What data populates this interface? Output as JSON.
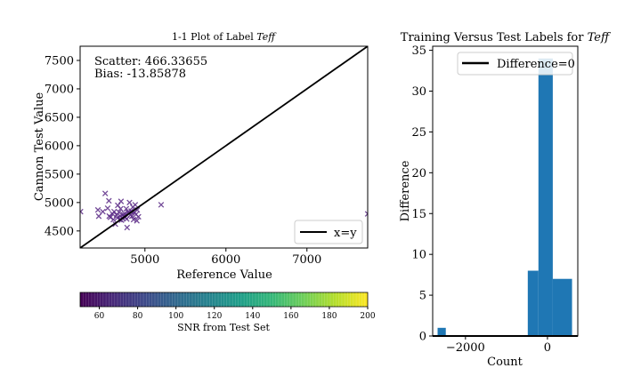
{
  "chart_data": [
    {
      "type": "scatter",
      "title": "1-1 Plot of Label",
      "title_var": "Teff",
      "xlabel": "Reference Value",
      "ylabel": "Cannon Test Value",
      "xlim": [
        4200,
        7750
      ],
      "ylim": [
        4200,
        7750
      ],
      "xticks": [
        5000,
        6000,
        7000
      ],
      "yticks": [
        4500,
        5000,
        5500,
        6000,
        6500,
        7000,
        7500
      ],
      "annotations": [
        "Scatter: 466.33655",
        "Bias: -13.85878"
      ],
      "legend": {
        "label": "x=y",
        "placement": "lower-right"
      },
      "marker_color": "#5b2a86",
      "points": [
        [
          4205,
          4840
        ],
        [
          4420,
          4870
        ],
        [
          4430,
          4760
        ],
        [
          4480,
          4840
        ],
        [
          4510,
          5160
        ],
        [
          4540,
          4900
        ],
        [
          4555,
          5030
        ],
        [
          4560,
          4760
        ],
        [
          4575,
          4740
        ],
        [
          4600,
          4800
        ],
        [
          4610,
          4700
        ],
        [
          4620,
          4840
        ],
        [
          4635,
          4620
        ],
        [
          4650,
          4780
        ],
        [
          4660,
          4730
        ],
        [
          4665,
          4950
        ],
        [
          4680,
          4830
        ],
        [
          4690,
          4700
        ],
        [
          4695,
          4760
        ],
        [
          4700,
          4890
        ],
        [
          4705,
          5020
        ],
        [
          4710,
          4690
        ],
        [
          4720,
          4730
        ],
        [
          4730,
          4790
        ],
        [
          4740,
          4760
        ],
        [
          4750,
          4800
        ],
        [
          4760,
          4740
        ],
        [
          4770,
          4890
        ],
        [
          4775,
          4710
        ],
        [
          4780,
          4560
        ],
        [
          4790,
          4830
        ],
        [
          4800,
          4820
        ],
        [
          4810,
          5000
        ],
        [
          4820,
          4780
        ],
        [
          4830,
          4850
        ],
        [
          4840,
          4760
        ],
        [
          4850,
          4920
        ],
        [
          4860,
          4700
        ],
        [
          4870,
          4830
        ],
        [
          4880,
          4960
        ],
        [
          4890,
          4790
        ],
        [
          4900,
          4680
        ],
        [
          4905,
          4870
        ],
        [
          4920,
          4750
        ],
        [
          5200,
          4960
        ],
        [
          7750,
          4800
        ]
      ]
    },
    {
      "type": "bar",
      "title": "Training Versus Test Labels for",
      "title_var": "Teff",
      "xlabel": "Count",
      "ylabel": "Difference",
      "xlim": [
        -2800,
        740
      ],
      "ylim": [
        0,
        35.5
      ],
      "xticks": [
        -2000,
        0
      ],
      "xtick_labels": [
        "−2000",
        "0"
      ],
      "yticks": [
        0,
        5,
        10,
        15,
        20,
        25,
        30,
        35
      ],
      "legend": {
        "label": "Difference=0",
        "placement": "top-right"
      },
      "bar_color": "#1f77b4",
      "bins": [
        {
          "x0": -2680,
          "x1": -2480,
          "count": 1
        },
        {
          "x0": -2480,
          "x1": -2280,
          "count": 0
        },
        {
          "x0": -2280,
          "x1": -2080,
          "count": 0
        },
        {
          "x0": -2080,
          "x1": -1880,
          "count": 0
        },
        {
          "x0": -1880,
          "x1": -1680,
          "count": 0
        },
        {
          "x0": -1680,
          "x1": -1480,
          "count": 0
        },
        {
          "x0": -1480,
          "x1": -1280,
          "count": 0
        },
        {
          "x0": -1280,
          "x1": -1080,
          "count": 0
        },
        {
          "x0": -1080,
          "x1": -880,
          "count": 0
        },
        {
          "x0": -880,
          "x1": -680,
          "count": 0
        },
        {
          "x0": -680,
          "x1": -480,
          "count": 0
        },
        {
          "x0": -480,
          "x1": -220,
          "count": 8
        },
        {
          "x0": -220,
          "x1": 130,
          "count": 34
        },
        {
          "x0": 130,
          "x1": 600,
          "count": 7
        }
      ]
    }
  ],
  "colorbar": {
    "label": "SNR from Test Set",
    "min": 50,
    "max": 200,
    "ticks": [
      60,
      80,
      100,
      120,
      140,
      160,
      180,
      200
    ],
    "colormap": [
      "#440154",
      "#482878",
      "#3e4989",
      "#31688e",
      "#26828e",
      "#1f9e89",
      "#35b779",
      "#6ece58",
      "#b5de2b",
      "#fde725"
    ]
  }
}
